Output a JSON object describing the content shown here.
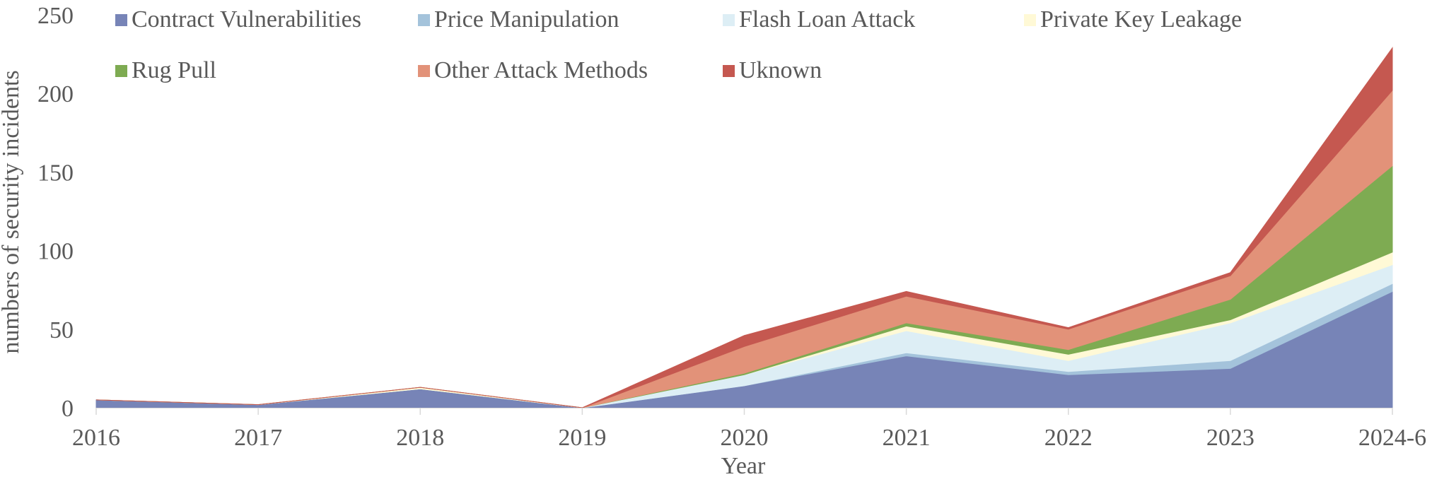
{
  "chart_data": {
    "type": "area",
    "stacked": true,
    "title": "",
    "xlabel": "Year",
    "ylabel": "numbers of security incidents",
    "ylim": [
      0,
      250
    ],
    "yticks": [
      0,
      50,
      100,
      150,
      200,
      250
    ],
    "grid": false,
    "legend_position": "top",
    "categories": [
      "2016",
      "2017",
      "2018",
      "2019",
      "2020",
      "2021",
      "2022",
      "2023",
      "2024-6"
    ],
    "series": [
      {
        "name": "Contract Vulnerabilities",
        "color": "#7784B7",
        "values": [
          5,
          2,
          12,
          0,
          14,
          33,
          21,
          25,
          74
        ]
      },
      {
        "name": "Price Manipulation",
        "color": "#A4C3DB",
        "values": [
          0,
          0,
          0,
          0,
          0,
          2,
          2,
          5,
          5
        ]
      },
      {
        "name": "Flash Loan Attack",
        "color": "#DDEEF5",
        "values": [
          0,
          0,
          0,
          0,
          7,
          14,
          7,
          24,
          12
        ]
      },
      {
        "name": "Private Key Leakage",
        "color": "#FFF9D6",
        "values": [
          0,
          0,
          1,
          0,
          0,
          3,
          4,
          2,
          8
        ]
      },
      {
        "name": "Rug Pull",
        "color": "#7EAB52",
        "values": [
          0,
          0,
          0,
          0,
          1,
          2,
          3,
          13,
          55
        ]
      },
      {
        "name": "Other Attack Methods",
        "color": "#E29279",
        "values": [
          0,
          0,
          0,
          0,
          17,
          17,
          13,
          15,
          48
        ]
      },
      {
        "name": "Uknown",
        "color": "#C55850",
        "values": [
          0,
          0,
          0,
          0,
          7,
          3,
          1,
          2,
          27
        ]
      }
    ]
  },
  "legend": {
    "items": [
      {
        "label": "Contract Vulnerabilities",
        "color": "#7784B7"
      },
      {
        "label": "Price Manipulation",
        "color": "#A4C3DB"
      },
      {
        "label": "Flash Loan Attack",
        "color": "#DDEEF5"
      },
      {
        "label": "Private Key Leakage",
        "color": "#FFF9D6"
      },
      {
        "label": "Rug Pull",
        "color": "#7EAB52"
      },
      {
        "label": "Other Attack Methods",
        "color": "#E29279"
      },
      {
        "label": "Uknown",
        "color": "#C55850"
      }
    ]
  },
  "axes": {
    "x_title": "Year",
    "y_title": "numbers of security incidents"
  }
}
